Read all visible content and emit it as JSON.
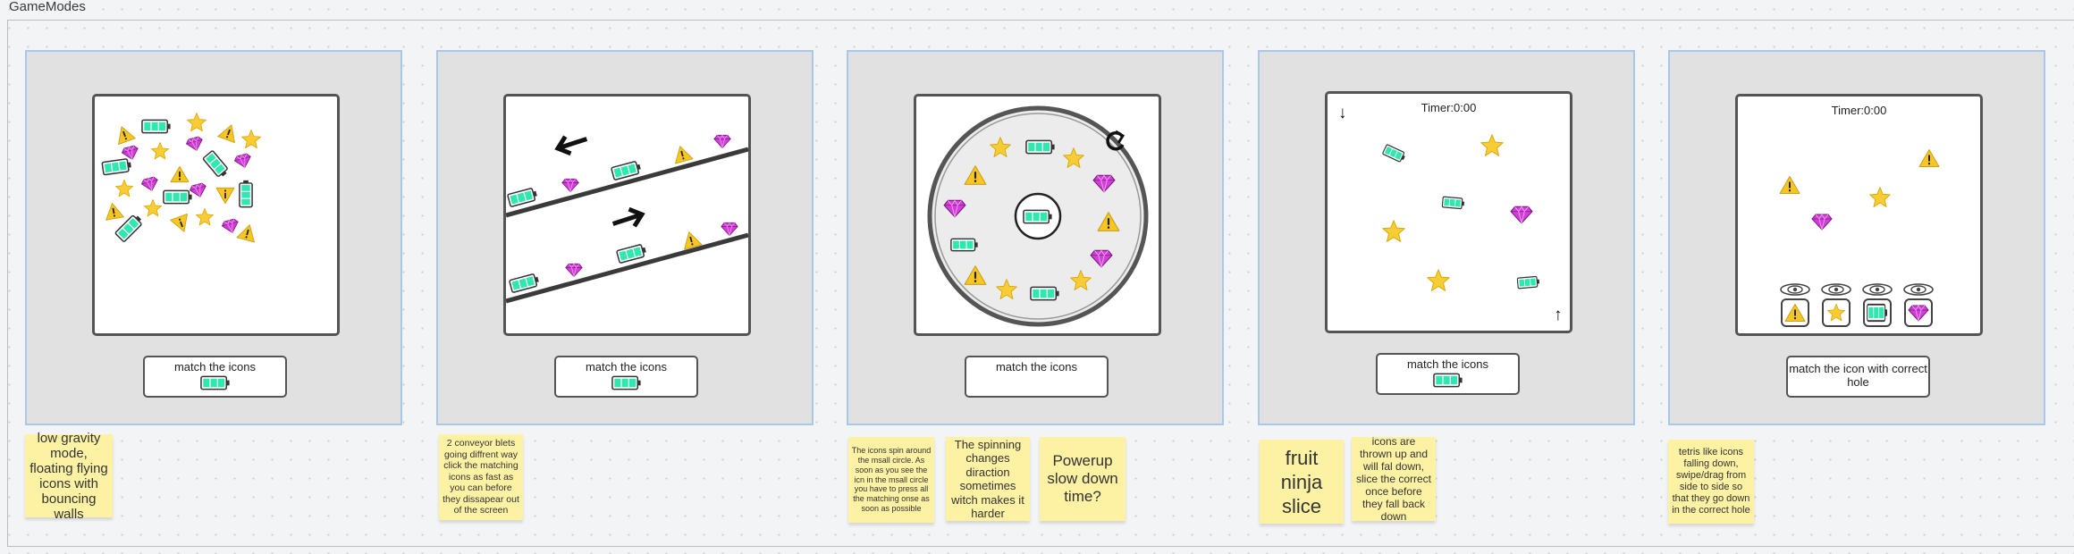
{
  "board": {
    "title": "GameModes"
  },
  "colors": {
    "battery": "#2ee8b0",
    "star": "#f8cc35",
    "gem": "#d23fd8",
    "warning": "#f8c623",
    "panel": "#e1e1e1",
    "panel_border": "#a9c8e9",
    "note": "#fdf1a4"
  },
  "panels": [
    {
      "caption": "match the icons",
      "caption_icon": "battery-icon"
    },
    {
      "caption": "match the icons",
      "caption_icon": "battery-icon"
    },
    {
      "caption": "match the icons"
    },
    {
      "caption": "match the icons",
      "caption_icon": "battery-icon",
      "down_arrow": "↓",
      "up_arrow": "↑",
      "timer": "Timer:0:00"
    },
    {
      "caption": "match the icon with correct hole",
      "timer": "Timer:0:00",
      "holes": [
        "warning-icon",
        "star-icon",
        "battery-icon",
        "gem-icon"
      ]
    }
  ],
  "notes": [
    {
      "text": "low gravity mode, floating flying icons with bouncing walls"
    },
    {
      "text": "2 conveyor blets going diffrent way click the matching icons as fast as you can before they dissapear out of the screen"
    },
    {
      "text": "The icons spin around the msall circle. As soon as you see the icn in the msall circle you have to press all the matching onse as soon as possible"
    },
    {
      "text": "The spinning changes diraction sometimes witch makes it harder"
    },
    {
      "text": "Powerup slow down time?"
    },
    {
      "text": "fruit ninja slice"
    },
    {
      "text": "icons are thrown up and will fal down, slice the correct once before they fall back down"
    },
    {
      "text": "tetris like icons falling down, swipe/drag from side to side so that they go down in the correct hole"
    }
  ]
}
